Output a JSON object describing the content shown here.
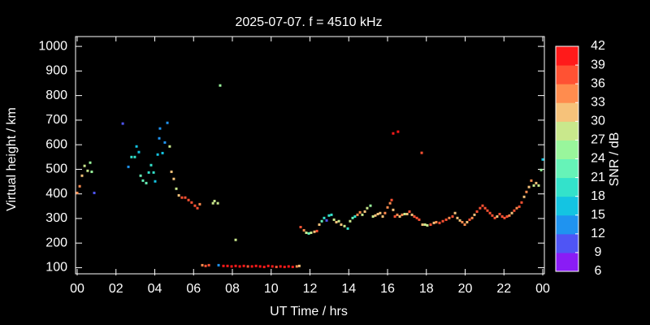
{
  "chart_data": {
    "type": "scatter",
    "title": "2025-07-07. f = 4510 kHz",
    "x_label": "UT Time / hrs",
    "y_label": "Virtual height / km",
    "xlim": [
      0,
      24
    ],
    "xticks": [
      {
        "value": 0,
        "label": "00"
      },
      {
        "value": 2,
        "label": "02"
      },
      {
        "value": 4,
        "label": "04"
      },
      {
        "value": 6,
        "label": "06"
      },
      {
        "value": 8,
        "label": "08"
      },
      10,
      12,
      14,
      16,
      18,
      20,
      22,
      {
        "value": 24,
        "label": "00"
      }
    ],
    "ylim": [
      75,
      1040
    ],
    "yticks": [
      100,
      200,
      300,
      400,
      500,
      600,
      700,
      800,
      900,
      1000
    ],
    "colorbar": {
      "title": "SNR / dB",
      "lim": [
        6,
        42
      ],
      "ticks": [
        6,
        9,
        12,
        15,
        18,
        21,
        24,
        27,
        30,
        33,
        36,
        39,
        42
      ],
      "colors": [
        "#8a1cf5",
        "#4f55f5",
        "#1f93f0",
        "#14c4e2",
        "#33e2cb",
        "#66f3b8",
        "#99f69c",
        "#c9e88c",
        "#f6c27a",
        "#ff8c4e",
        "#ff5233",
        "#ff1a1a"
      ]
    },
    "x": [
      0.0,
      0.13,
      0.25,
      0.38,
      0.54,
      0.67,
      0.75,
      0.88,
      2.35,
      2.64,
      2.8,
      2.97,
      3.06,
      3.18,
      3.27,
      3.39,
      3.56,
      3.69,
      3.81,
      3.94,
      4.02,
      4.15,
      4.23,
      4.27,
      4.4,
      4.52,
      4.65,
      4.77,
      4.86,
      4.98,
      5.11,
      5.24,
      5.4,
      5.57,
      5.74,
      5.9,
      6.07,
      6.2,
      6.32,
      7.0,
      7.08,
      7.25,
      7.37,
      8.17,
      7.29,
      6.45,
      6.62,
      6.79,
      7.54,
      7.75,
      7.96,
      8.17,
      8.38,
      8.59,
      8.8,
      9.01,
      9.22,
      9.43,
      9.64,
      9.85,
      10.06,
      10.27,
      10.48,
      10.69,
      10.9,
      11.11,
      11.32,
      11.45,
      11.52,
      11.69,
      11.81,
      11.94,
      12.06,
      12.23,
      12.36,
      12.48,
      12.61,
      12.73,
      12.86,
      12.98,
      13.11,
      13.24,
      13.36,
      13.49,
      13.61,
      13.78,
      13.95,
      14.07,
      14.2,
      14.32,
      14.45,
      14.58,
      14.7,
      14.83,
      14.95,
      15.12,
      15.25,
      15.37,
      15.5,
      15.62,
      15.75,
      15.87,
      16.0,
      16.13,
      16.21,
      16.29,
      16.38,
      16.5,
      16.63,
      16.75,
      16.88,
      17.01,
      17.13,
      17.26,
      17.38,
      17.51,
      17.63,
      17.8,
      17.93,
      18.05,
      18.22,
      18.39,
      18.51,
      18.68,
      18.85,
      19.02,
      19.18,
      19.35,
      19.48,
      19.6,
      19.73,
      19.85,
      19.98,
      20.1,
      20.23,
      20.36,
      20.48,
      20.61,
      20.77,
      20.9,
      21.03,
      21.15,
      21.28,
      21.4,
      21.53,
      21.65,
      21.78,
      21.91,
      22.03,
      22.16,
      22.28,
      22.41,
      22.53,
      22.66,
      22.79,
      22.91,
      23.04,
      23.16,
      23.29,
      23.41,
      23.54,
      23.66,
      23.79,
      23.92,
      24.0,
      16.29,
      16.54,
      17.76
    ],
    "values": [
      404,
      431,
      474,
      514,
      494,
      527,
      490,
      404,
      686,
      510,
      550,
      550,
      593,
      570,
      474,
      454,
      444,
      487,
      517,
      487,
      451,
      560,
      626,
      666,
      566,
      609,
      689,
      593,
      490,
      461,
      421,
      394,
      385,
      385,
      375,
      365,
      352,
      342,
      358,
      362,
      371,
      362,
      841,
      213,
      110,
      110,
      107,
      110,
      107,
      107,
      105,
      107,
      105,
      107,
      105,
      105,
      107,
      105,
      103,
      107,
      105,
      103,
      105,
      103,
      105,
      103,
      105,
      107,
      265,
      252,
      242,
      239,
      242,
      246,
      249,
      275,
      289,
      302,
      292,
      312,
      315,
      295,
      285,
      289,
      275,
      269,
      259,
      289,
      302,
      308,
      315,
      325,
      315,
      328,
      342,
      352,
      308,
      312,
      318,
      322,
      308,
      322,
      345,
      362,
      375,
      335,
      308,
      315,
      308,
      315,
      318,
      318,
      328,
      315,
      308,
      302,
      295,
      275,
      275,
      272,
      275,
      282,
      285,
      282,
      289,
      295,
      302,
      308,
      322,
      302,
      292,
      285,
      275,
      285,
      295,
      302,
      315,
      328,
      342,
      352,
      342,
      332,
      322,
      312,
      302,
      308,
      318,
      308,
      302,
      308,
      312,
      322,
      332,
      342,
      348,
      365,
      388,
      408,
      428,
      454,
      434,
      444,
      434,
      497,
      540,
      646,
      653,
      567
    ],
    "snr": [
      35,
      35,
      30,
      27,
      27,
      26,
      25,
      11,
      10,
      12,
      18,
      18,
      16,
      16,
      22,
      22,
      21,
      18,
      20,
      18,
      16,
      15,
      13,
      14,
      17,
      12,
      14,
      27,
      30,
      32,
      29,
      31,
      36,
      36,
      36,
      36,
      37,
      37,
      35,
      27,
      27,
      27,
      26,
      28,
      13,
      35,
      36,
      36,
      40,
      40,
      40,
      41,
      40,
      40,
      37,
      40,
      40,
      40,
      41,
      40,
      40,
      37,
      40,
      40,
      41,
      40,
      33,
      30,
      36,
      35,
      28,
      22,
      28,
      31,
      37,
      32,
      22,
      20,
      11,
      19,
      18,
      27,
      30,
      27,
      30,
      27,
      20,
      27,
      22,
      20,
      34,
      35,
      27,
      30,
      27,
      26,
      28,
      31,
      30,
      30,
      30,
      33,
      33,
      35,
      36,
      30,
      37,
      33,
      32,
      33,
      28,
      32,
      36,
      31,
      36,
      36,
      36,
      30,
      27,
      27,
      36,
      30,
      35,
      36,
      36,
      36,
      35,
      36,
      32,
      31,
      31,
      35,
      33,
      30,
      36,
      35,
      32,
      36,
      36,
      38,
      37,
      36,
      36,
      37,
      36,
      32,
      36,
      36,
      37,
      36,
      35,
      31,
      36,
      34,
      36,
      36,
      30,
      35,
      30,
      34,
      28,
      30,
      27,
      24,
      15,
      40,
      39,
      38
    ]
  }
}
